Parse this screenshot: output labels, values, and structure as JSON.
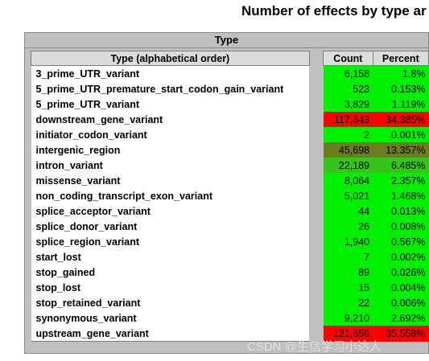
{
  "title": "Number of effects by type ar",
  "outer_header": "Type",
  "columns": {
    "type": "Type (alphabetical order)",
    "count": "Count",
    "percent": "Percent"
  },
  "colors": {
    "green": "#00f000",
    "red": "#ff0000",
    "olive": "#6b8e23",
    "olive_dark": "#6b7d1f",
    "green_mid": "#34c41a"
  },
  "rows": [
    {
      "type": "3_prime_UTR_variant",
      "count": "6,158",
      "percent": "1.8%",
      "color": "#00f000"
    },
    {
      "type": "5_prime_UTR_premature_start_codon_gain_variant",
      "count": "523",
      "percent": "0.153%",
      "color": "#00f000"
    },
    {
      "type": "5_prime_UTR_variant",
      "count": "3,829",
      "percent": "1.119%",
      "color": "#00f000"
    },
    {
      "type": "downstream_gene_variant",
      "count": "117,643",
      "percent": "34.385%",
      "color": "#ff0000"
    },
    {
      "type": "initiator_codon_variant",
      "count": "2",
      "percent": "0.001%",
      "color": "#00f000"
    },
    {
      "type": "intergenic_region",
      "count": "45,698",
      "percent": "13.357%",
      "color": "#6b7d1f"
    },
    {
      "type": "intron_variant",
      "count": "22,189",
      "percent": "6.485%",
      "color": "#34c41a"
    },
    {
      "type": "missense_variant",
      "count": "8,064",
      "percent": "2.357%",
      "color": "#00f000"
    },
    {
      "type": "non_coding_transcript_exon_variant",
      "count": "5,021",
      "percent": "1.468%",
      "color": "#00f000"
    },
    {
      "type": "splice_acceptor_variant",
      "count": "44",
      "percent": "0.013%",
      "color": "#00f000"
    },
    {
      "type": "splice_donor_variant",
      "count": "26",
      "percent": "0.008%",
      "color": "#00f000"
    },
    {
      "type": "splice_region_variant",
      "count": "1,940",
      "percent": "0.567%",
      "color": "#00f000"
    },
    {
      "type": "start_lost",
      "count": "7",
      "percent": "0.002%",
      "color": "#00f000"
    },
    {
      "type": "stop_gained",
      "count": "89",
      "percent": "0.026%",
      "color": "#00f000"
    },
    {
      "type": "stop_lost",
      "count": "15",
      "percent": "0.004%",
      "color": "#00f000"
    },
    {
      "type": "stop_retained_variant",
      "count": "22",
      "percent": "0.006%",
      "color": "#00f000"
    },
    {
      "type": "synonymous_variant",
      "count": "9,210",
      "percent": "2.692%",
      "color": "#00f000"
    },
    {
      "type": "upstream_gene_variant",
      "count": "121,656",
      "percent": "35.558%",
      "color": "#ff0000"
    }
  ],
  "watermark": "CSDN @生信学习小达人"
}
